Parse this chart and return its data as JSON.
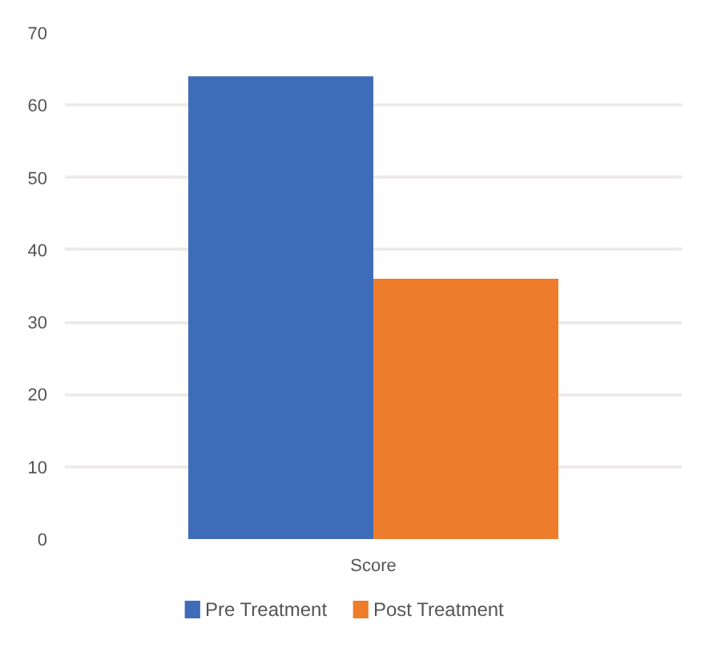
{
  "chart_data": {
    "type": "bar",
    "categories": [
      "Score"
    ],
    "series": [
      {
        "name": "Pre Treatment",
        "color": "#3f6cb8",
        "values": [
          64
        ]
      },
      {
        "name": "Post Treatment",
        "color": "#ed7d2b",
        "values": [
          36
        ]
      }
    ],
    "ylim": [
      0,
      70
    ],
    "yticks": [
      0,
      10,
      20,
      30,
      40,
      50,
      60,
      70
    ],
    "grid": "y",
    "legend": "bottom"
  }
}
